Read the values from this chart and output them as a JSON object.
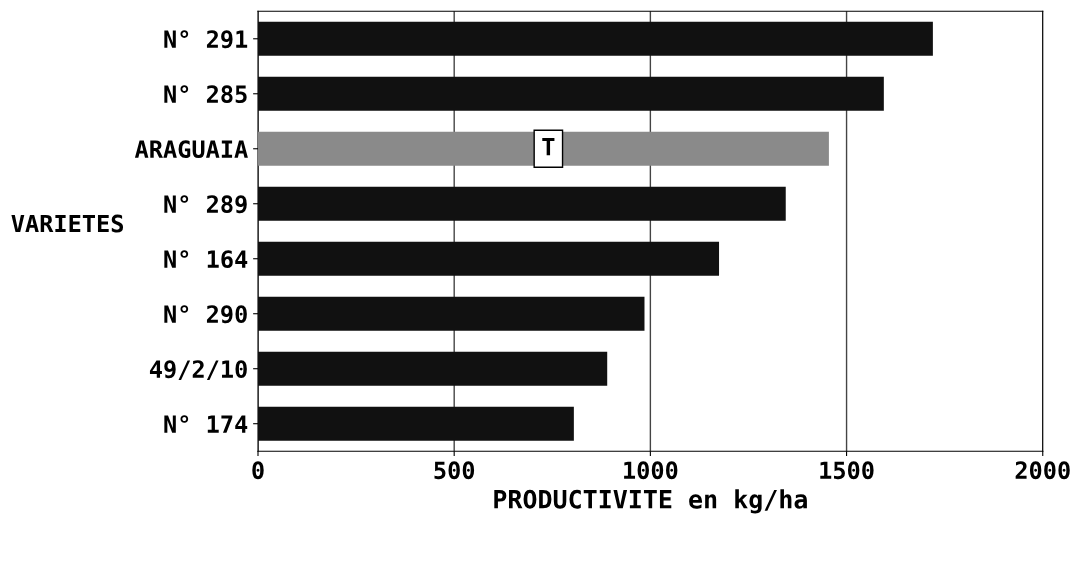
{
  "chart_data": {
    "type": "bar",
    "orientation": "horizontal",
    "categories": [
      "N° 291",
      "N° 285",
      "ARAGUAIA",
      "N° 289",
      "N° 164",
      "N° 290",
      "49/2/10",
      "N° 174"
    ],
    "values": [
      1720,
      1595,
      1455,
      1345,
      1175,
      985,
      890,
      805
    ],
    "colors": [
      "#111111",
      "#111111",
      "#8a8a8a",
      "#111111",
      "#111111",
      "#111111",
      "#111111",
      "#111111"
    ],
    "xlabel": "PRODUCTIVITE en kg/ha",
    "ylabel": "VARIETES",
    "xlim": [
      0,
      2000
    ],
    "xticks": [
      0,
      500,
      1000,
      1500,
      2000
    ],
    "annotations": [
      {
        "text": "T",
        "x": 740,
        "y": "ARAGUAIA"
      }
    ],
    "grid": "x",
    "legend": false
  }
}
